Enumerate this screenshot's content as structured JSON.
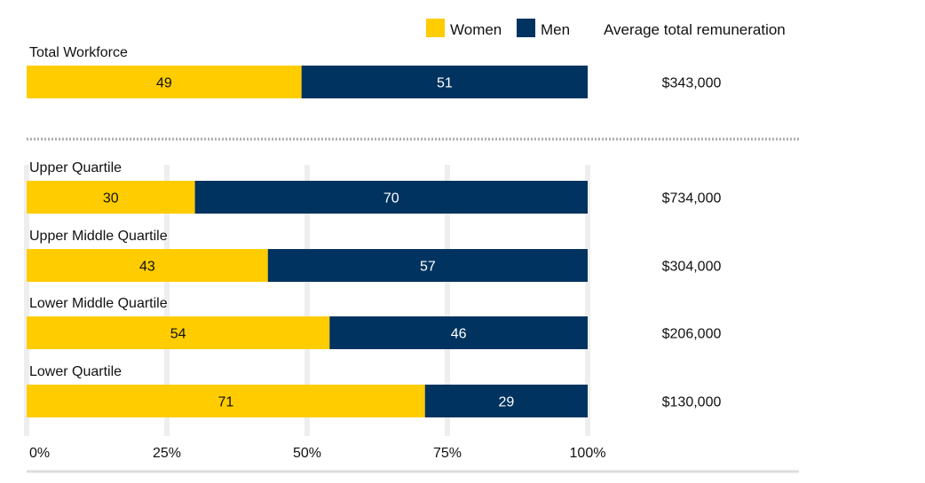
{
  "chart_data": {
    "type": "bar",
    "orientation": "horizontal",
    "stacked": "percent",
    "legend": {
      "position": "top-right",
      "items": [
        {
          "name": "Women",
          "color": "#FFCC00"
        },
        {
          "name": "Men",
          "color": "#00335F"
        }
      ],
      "extra_column_title": "Average total remuneration"
    },
    "groups": [
      {
        "label": "Total Workforce",
        "women": 49,
        "men": 51,
        "remuneration": "$343,000"
      },
      {
        "label": "Upper Quartile",
        "women": 30,
        "men": 70,
        "remuneration": "$734,000"
      },
      {
        "label": "Upper Middle Quartile",
        "women": 43,
        "men": 57,
        "remuneration": "$304,000"
      },
      {
        "label": "Lower Middle Quartile",
        "women": 54,
        "men": 46,
        "remuneration": "$206,000"
      },
      {
        "label": "Lower Quartile",
        "women": 71,
        "men": 29,
        "remuneration": "$130,000"
      }
    ],
    "xaxis": {
      "ticks": [
        0,
        25,
        50,
        75,
        100
      ],
      "tick_labels": [
        "0%",
        "25%",
        "50%",
        "75%",
        "100%"
      ],
      "xlim": [
        0,
        100
      ]
    },
    "grid": true,
    "separator": "dotted line between Total Workforce and quartiles"
  }
}
